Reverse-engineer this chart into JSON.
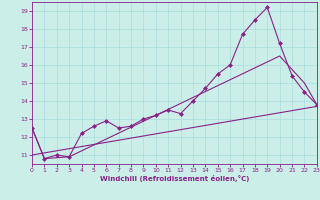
{
  "bg_color": "#cceee8",
  "grid_color": "#aadddd",
  "line_color": "#882288",
  "marker_color": "#882288",
  "xlabel": "Windchill (Refroidissement éolien,°C)",
  "xlim": [
    0,
    23
  ],
  "ylim": [
    10.5,
    19.5
  ],
  "yticks": [
    11,
    12,
    13,
    14,
    15,
    16,
    17,
    18,
    19
  ],
  "xticks": [
    0,
    1,
    2,
    3,
    4,
    5,
    6,
    7,
    8,
    9,
    10,
    11,
    12,
    13,
    14,
    15,
    16,
    17,
    18,
    19,
    20,
    21,
    22,
    23
  ],
  "line1_x": [
    0,
    1,
    2,
    3,
    4,
    5,
    6,
    7,
    8,
    9,
    10,
    11,
    12,
    13,
    14,
    15,
    16,
    17,
    18,
    19,
    20,
    21,
    22,
    23
  ],
  "line1_y": [
    12.5,
    10.8,
    11.0,
    10.9,
    12.2,
    12.6,
    12.9,
    12.5,
    12.6,
    13.0,
    13.2,
    13.5,
    13.3,
    14.0,
    14.7,
    15.5,
    16.0,
    17.7,
    18.5,
    19.2,
    17.2,
    15.4,
    14.5,
    13.8
  ],
  "line3_x": [
    0,
    23
  ],
  "line3_y": [
    11.0,
    13.7
  ],
  "line4_x": [
    0,
    1,
    3,
    20,
    22,
    23
  ],
  "line4_y": [
    12.5,
    10.8,
    10.9,
    16.5,
    15.0,
    13.8
  ]
}
